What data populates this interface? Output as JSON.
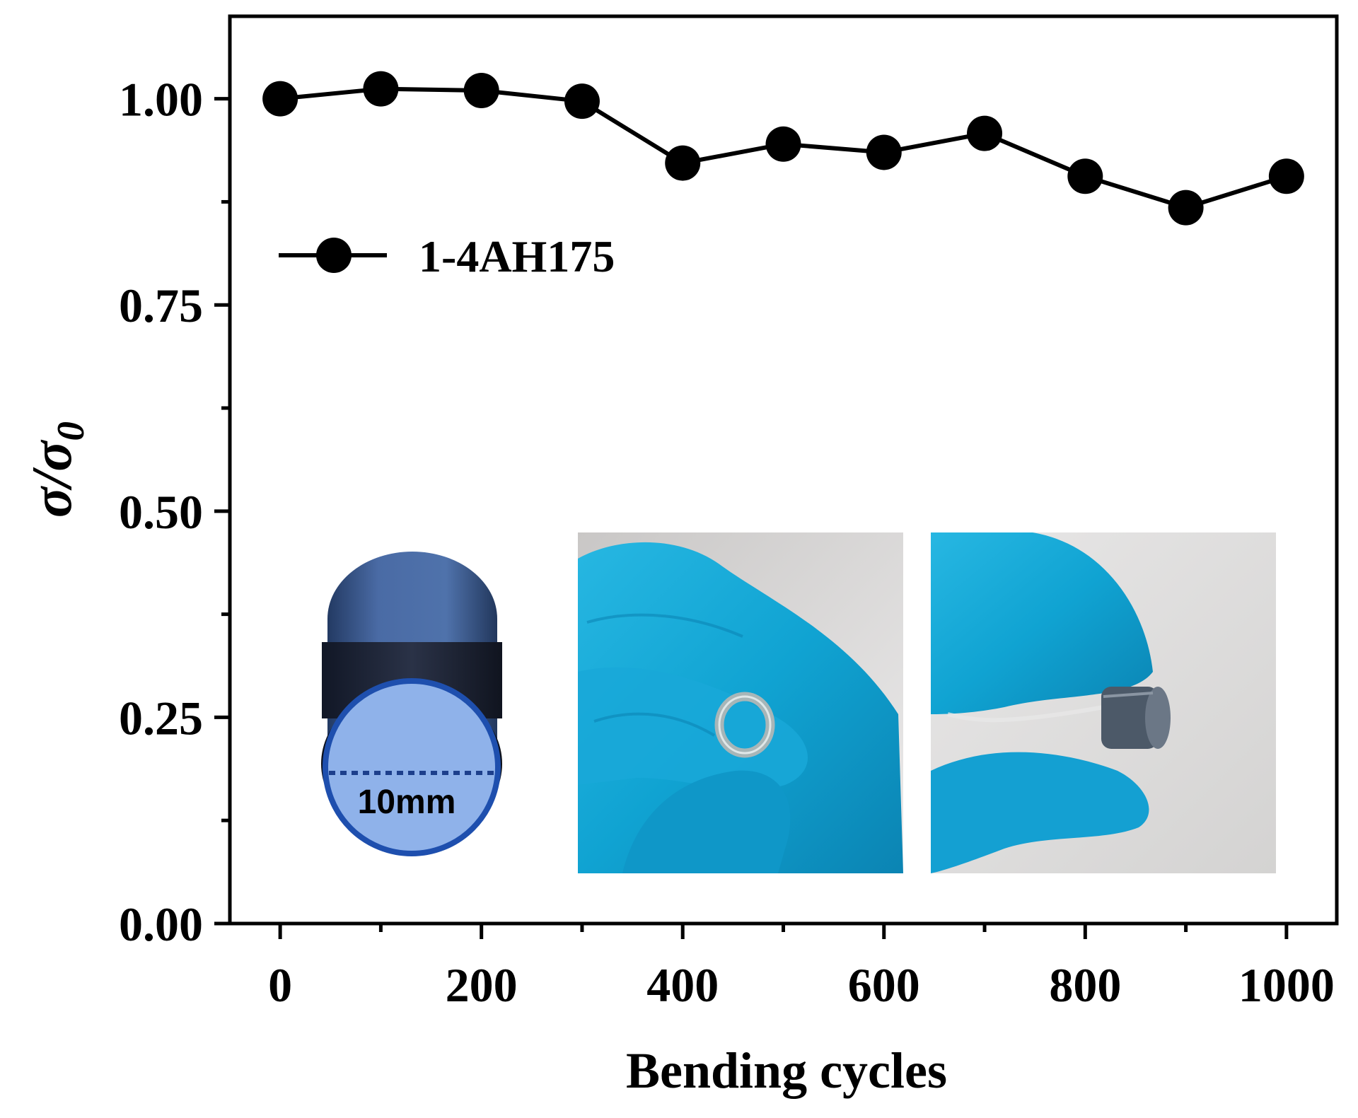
{
  "chart_data": {
    "type": "line",
    "xlabel": "Bending cycles",
    "ylabel_main": "σ/σ",
    "ylabel_sub": "0",
    "xlim": [
      -50,
      1050
    ],
    "ylim": [
      0,
      1.1
    ],
    "x_ticks": [
      0,
      200,
      400,
      600,
      800,
      1000
    ],
    "x_minor_ticks": [
      100,
      300,
      500,
      700,
      900
    ],
    "y_ticks": [
      0.0,
      0.25,
      0.5,
      0.75,
      1.0
    ],
    "y_tick_labels": [
      "0.00",
      "0.25",
      "0.50",
      "0.75",
      "1.00"
    ],
    "y_minor_ticks": [
      0.125,
      0.375,
      0.625,
      0.875
    ],
    "grid": false,
    "legend_position": "upper-left",
    "series": [
      {
        "name": "1-4AH175",
        "color": "#000000",
        "x": [
          0,
          100,
          200,
          300,
          400,
          500,
          600,
          700,
          800,
          900,
          1000
        ],
        "y": [
          1.0,
          1.012,
          1.01,
          0.997,
          0.922,
          0.945,
          0.935,
          0.958,
          0.906,
          0.868,
          0.906
        ]
      }
    ],
    "insets": {
      "cylinder_label": "10mm",
      "photos": [
        "gloved-hand-holding-ring-sample",
        "gloved-hand-holding-cylinder-sample"
      ]
    }
  }
}
